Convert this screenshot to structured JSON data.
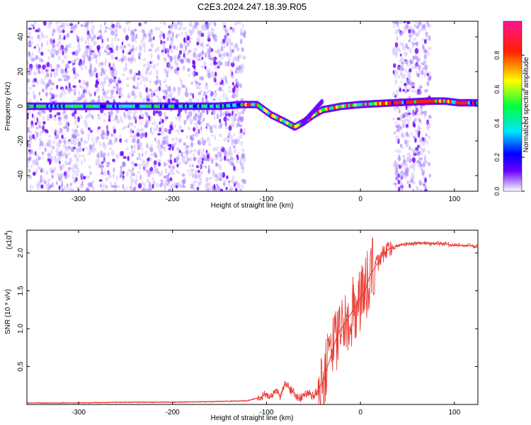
{
  "title": "C2E3.2024.247.18.39.R05",
  "chart_data": [
    {
      "type": "heatmap",
      "xlabel": "Height of straight line (km)",
      "ylabel": "Frequency (Hz)",
      "xlim": [
        -355,
        125
      ],
      "ylim": [
        -49,
        49
      ],
      "x_ticks": [
        -300,
        -200,
        -100,
        0,
        100
      ],
      "x_tick_labels": [
        "-300",
        "-200",
        "-100",
        "0",
        "100"
      ],
      "y_ticks": [
        -40,
        -20,
        0,
        20,
        40
      ],
      "y_tick_labels": [
        "-40",
        "-20",
        "0",
        "20",
        "40"
      ],
      "colorbar": {
        "label": "Normalized spectral amplitude",
        "range": [
          0,
          1
        ],
        "ticks": [
          0.0,
          0.2,
          0.4,
          0.6,
          0.8
        ],
        "tick_labels": [
          "0.0",
          "0.2",
          "0.4",
          "0.6",
          "0.8"
        ],
        "colors": [
          "#ffffff",
          "#6a00ff",
          "#0000ff",
          "#00e5ff",
          "#00ff40",
          "#ffff00",
          "#ff2000",
          "#ff1493"
        ]
      },
      "noise_regions": [
        [
          -355,
          -123
        ],
        [
          35,
          74
        ]
      ],
      "carrier_frequency_track": [
        {
          "x": -355,
          "y": 0
        },
        {
          "x": -300,
          "y": 0
        },
        {
          "x": -250,
          "y": 0
        },
        {
          "x": -200,
          "y": 0
        },
        {
          "x": -150,
          "y": 0
        },
        {
          "x": -125,
          "y": 1
        },
        {
          "x": -110,
          "y": 1
        },
        {
          "x": -95,
          "y": -5
        },
        {
          "x": -80,
          "y": -9
        },
        {
          "x": -70,
          "y": -12
        },
        {
          "x": -60,
          "y": -9
        },
        {
          "x": -50,
          "y": -5
        },
        {
          "x": -40,
          "y": -2
        },
        {
          "x": -20,
          "y": 0
        },
        {
          "x": 0,
          "y": 1
        },
        {
          "x": 35,
          "y": 2
        },
        {
          "x": 75,
          "y": 3
        },
        {
          "x": 90,
          "y": 3
        },
        {
          "x": 105,
          "y": 2
        },
        {
          "x": 125,
          "y": 2
        }
      ]
    },
    {
      "type": "line",
      "xlabel": "Height of straight line (km)",
      "ylabel": "SNR (10 * v/v)",
      "y_multiplier_label": "(x10",
      "y_multiplier_exp": "4",
      "y_multiplier_close": ")",
      "xlim": [
        -355,
        125
      ],
      "ylim": [
        0,
        2.3
      ],
      "x_ticks": [
        -300,
        -200,
        -100,
        0,
        100
      ],
      "x_tick_labels": [
        "-300",
        "-200",
        "-100",
        "0",
        "100"
      ],
      "y_ticks": [
        0.5,
        1.0,
        1.5,
        2.0
      ],
      "y_tick_labels": [
        "0.5",
        "1.0",
        "1.5",
        "2.0"
      ],
      "line_color": "#e8342b",
      "series": [
        {
          "x": [
            -355,
            -300,
            -250,
            -200,
            -150,
            -120,
            -105,
            -100,
            -95,
            -90,
            -85,
            -80,
            -75,
            -70,
            -65,
            -60,
            -55,
            -50,
            -45,
            -40,
            -35,
            -30,
            -25,
            -20,
            -15,
            -10,
            -5,
            0,
            5,
            10,
            15,
            20,
            25,
            30,
            40,
            50,
            60,
            70,
            80,
            90,
            100,
            110,
            120,
            125
          ],
          "y": [
            0.02,
            0.02,
            0.03,
            0.03,
            0.04,
            0.05,
            0.1,
            0.15,
            0.1,
            0.2,
            0.1,
            0.3,
            0.2,
            0.15,
            0.08,
            0.12,
            0.15,
            0.1,
            0.2,
            0.3,
            0.5,
            0.7,
            0.9,
            1.0,
            1.1,
            1.2,
            1.3,
            1.4,
            1.5,
            1.7,
            1.8,
            1.9,
            2.0,
            2.05,
            2.1,
            2.12,
            2.13,
            2.13,
            2.12,
            2.12,
            2.1,
            2.1,
            2.09,
            2.08
          ]
        }
      ]
    }
  ]
}
